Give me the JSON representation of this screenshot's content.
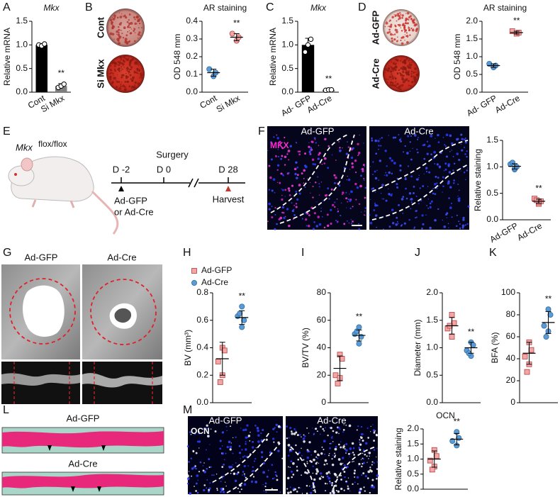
{
  "chart_data": [
    {
      "type": "bar",
      "title": "Mkx",
      "ylabel": "Relative mRNA",
      "categories": [
        "Cont",
        "Si Mkx"
      ],
      "annotation": "**",
      "ylim": [
        0,
        1.5
      ],
      "yticks": [
        {
          "value": 0,
          "label": "0.0"
        },
        {
          "value": 0.5,
          "label": "0.5"
        },
        {
          "value": 1,
          "label": "1.0"
        },
        {
          "value": 1.5,
          "label": "1.5"
        }
      ],
      "groups": [
        {
          "color": "#000000",
          "marker": "circle",
          "mean": 1.0,
          "sd": 0.03,
          "points": [
            1.0,
            0.98,
            1.02
          ]
        },
        {
          "color": "#7f7f7f",
          "marker": "circle",
          "mean": 0.13,
          "sd": 0.05,
          "points": [
            0.1,
            0.13,
            0.17
          ]
        }
      ]
    },
    {
      "type": "dot",
      "title": "AR staining",
      "ylabel": "OD 548 mm",
      "categories": [
        "Cont",
        "Si Mkx"
      ],
      "annotation": "**",
      "ylim": [
        0,
        0.4
      ],
      "yticks": [
        {
          "value": 0,
          "label": "0.0"
        },
        0.1,
        0.2,
        0.3,
        0.4
      ],
      "groups": [
        {
          "color": "#5b9bd5",
          "marker": "circle",
          "mean": 0.11,
          "sd": 0.02,
          "points": [
            0.09,
            0.11,
            0.13
          ]
        },
        {
          "color": "#f4a6a6",
          "marker": "circle",
          "mean": 0.31,
          "sd": 0.02,
          "points": [
            0.29,
            0.31,
            0.33
          ]
        }
      ]
    },
    {
      "type": "bar",
      "title": "Mkx",
      "ylabel": "Relative mRNA",
      "categories": [
        "Ad- GFP",
        "Ad-Cre"
      ],
      "annotation": "**",
      "ylim": [
        0,
        1.5
      ],
      "yticks": [
        {
          "value": 0,
          "label": "0.0"
        },
        {
          "value": 0.5,
          "label": "0.5"
        },
        {
          "value": 1,
          "label": "1.0"
        },
        {
          "value": 1.5,
          "label": "1.5"
        }
      ],
      "groups": [
        {
          "color": "#000000",
          "marker": "circle",
          "mean": 1.0,
          "sd": 0.14,
          "points": [
            0.85,
            1.0,
            1.12
          ]
        },
        {
          "color": "#7f7f7f",
          "marker": "circle",
          "mean": 0.05,
          "sd": 0.01,
          "points": [
            0.04,
            0.05,
            0.05
          ]
        }
      ]
    },
    {
      "type": "dot",
      "title": "AR staining",
      "ylabel": "OD 548 mm",
      "categories": [
        "Ad- GFP",
        "Ad-Cre"
      ],
      "annotation": "**",
      "ylim": [
        0,
        2
      ],
      "yticks": [
        {
          "value": 0,
          "label": "0.0"
        },
        {
          "value": 0.5,
          "label": "0.5"
        },
        {
          "value": 1,
          "label": "1.0"
        },
        {
          "value": 1.5,
          "label": "1.5"
        },
        {
          "value": 2,
          "label": "2.0"
        }
      ],
      "groups": [
        {
          "color": "#5b9bd5",
          "marker": "circle",
          "mean": 0.75,
          "sd": 0.05,
          "points": [
            0.7,
            0.75,
            0.8
          ]
        },
        {
          "color": "#f4a6a6",
          "marker": "square",
          "mean": 1.68,
          "sd": 0.04,
          "points": [
            1.65,
            1.68,
            1.72
          ]
        }
      ]
    },
    {
      "type": "dot",
      "ylabel": "Relative staining",
      "categories": [
        "Ad-GFP",
        "Ad-Cre"
      ],
      "annotation": "**",
      "ylim": [
        0,
        1.5
      ],
      "yticks": [
        {
          "value": 0,
          "label": "0.0"
        },
        {
          "value": 0.5,
          "label": "0.5"
        },
        {
          "value": 1,
          "label": "1.0"
        },
        {
          "value": 1.5,
          "label": "1.5"
        }
      ],
      "groups": [
        {
          "color": "#5b9bd5",
          "marker": "circle",
          "mean": 1.01,
          "sd": 0.05,
          "points": [
            0.95,
            1.0,
            1.05,
            0.97,
            1.08
          ]
        },
        {
          "color": "#f4a6a6",
          "marker": "square",
          "mean": 0.35,
          "sd": 0.04,
          "points": [
            0.3,
            0.35,
            0.4,
            0.33,
            0.37
          ]
        }
      ]
    },
    {
      "type": "dot",
      "ylabel": "BV (mm³)",
      "annotation": "**",
      "legend": [
        "Ad-GFP",
        "Ad-Cre"
      ],
      "ylim": [
        0,
        0.8
      ],
      "yticks": [
        {
          "value": 0,
          "label": "0.0"
        },
        0.2,
        0.4,
        0.6,
        0.8
      ],
      "groups": [
        {
          "color": "#f4a6a6",
          "marker": "square",
          "mean": 0.32,
          "sd": 0.12,
          "points": [
            0.4,
            0.38,
            0.3,
            0.2,
            0.15
          ]
        },
        {
          "color": "#5b9bd5",
          "marker": "circle",
          "mean": 0.62,
          "sd": 0.05,
          "points": [
            0.55,
            0.6,
            0.63,
            0.7,
            0.65
          ]
        }
      ]
    },
    {
      "type": "dot",
      "ylabel": "BV/TV (%)",
      "annotation": "**",
      "ylim": [
        0,
        80
      ],
      "yticks": [
        0,
        20,
        40,
        60,
        80
      ],
      "groups": [
        {
          "color": "#f4a6a6",
          "marker": "square",
          "mean": 25,
          "sd": 9,
          "points": [
            35,
            32,
            20,
            18,
            14
          ]
        },
        {
          "color": "#5b9bd5",
          "marker": "circle",
          "mean": 49,
          "sd": 4,
          "points": [
            43,
            48,
            50,
            55,
            52
          ]
        }
      ]
    },
    {
      "type": "dot",
      "ylabel": "Diameter (mm)",
      "annotation": "**",
      "ylim": [
        0,
        2
      ],
      "yticks": [
        {
          "value": 0,
          "label": "0.0"
        },
        {
          "value": 0.5,
          "label": "0.5"
        },
        {
          "value": 1,
          "label": "1.0"
        },
        {
          "value": 1.5,
          "label": "1.5"
        },
        {
          "value": 2,
          "label": "2.0"
        }
      ],
      "groups": [
        {
          "color": "#f4a6a6",
          "marker": "square",
          "mean": 1.4,
          "sd": 0.15,
          "points": [
            1.6,
            1.45,
            1.35,
            1.2,
            1.4
          ]
        },
        {
          "color": "#5b9bd5",
          "marker": "circle",
          "mean": 1.0,
          "sd": 0.1,
          "points": [
            1.1,
            1.05,
            0.95,
            0.85,
            0.9
          ]
        }
      ]
    },
    {
      "type": "dot",
      "ylabel": "BFA (%)",
      "annotation": "**",
      "ylim": [
        0,
        100
      ],
      "yticks": [
        0,
        20,
        40,
        60,
        80,
        100
      ],
      "groups": [
        {
          "color": "#f4a6a6",
          "marker": "square",
          "mean": 45,
          "sd": 10,
          "points": [
            55,
            48,
            42,
            35,
            28
          ]
        },
        {
          "color": "#5b9bd5",
          "marker": "circle",
          "mean": 73,
          "sd": 10,
          "points": [
            85,
            80,
            70,
            65,
            60
          ]
        }
      ]
    },
    {
      "type": "dot",
      "title": "OCN",
      "ylabel": "Relative staining",
      "annotation": "**",
      "ylim": [
        0,
        2
      ],
      "yticks": [
        {
          "value": 0,
          "label": "0.0"
        },
        {
          "value": 0.5,
          "label": "0.5"
        },
        {
          "value": 1,
          "label": "1.0"
        },
        {
          "value": 1.5,
          "label": "1.5"
        },
        {
          "value": 2,
          "label": "2.0"
        }
      ],
      "groups": [
        {
          "color": "#f4a6a6",
          "marker": "square",
          "mean": 1.0,
          "sd": 0.27,
          "points": [
            1.3,
            1.1,
            0.95,
            0.75,
            0.65
          ]
        },
        {
          "color": "#5b9bd5",
          "marker": "circle",
          "mean": 1.66,
          "sd": 0.19,
          "points": [
            1.9,
            1.7,
            1.6,
            1.45
          ]
        }
      ]
    }
  ],
  "panel_letters": [
    "A",
    "B",
    "C",
    "D",
    "E",
    "F",
    "G",
    "H",
    "I",
    "J",
    "K",
    "L",
    "M"
  ],
  "dish_labels_B": [
    "Cont",
    "Si Mkx"
  ],
  "dish_labels_D": [
    "Ad-GFP",
    "Ad-Cre"
  ],
  "schematic_E": {
    "gene": "Mkx",
    "genotype": "flox/flox",
    "surgery": "Surgery",
    "days": [
      "D -2",
      "D 0",
      "D 28"
    ],
    "injection": [
      "Ad-GFP",
      "or Ad-Cre"
    ],
    "harvest": "Harvest"
  },
  "image_labels_F": [
    "Ad-GFP",
    "Ad-Cre"
  ],
  "stain_F": "MKX",
  "image_labels_G": [
    "Ad-GFP",
    "Ad-Cre"
  ],
  "image_labels_L": [
    "Ad-GFP",
    "Ad-Cre"
  ],
  "image_labels_M": [
    "Ad-GFP",
    "Ad-Cre"
  ],
  "stain_M": "OCN"
}
